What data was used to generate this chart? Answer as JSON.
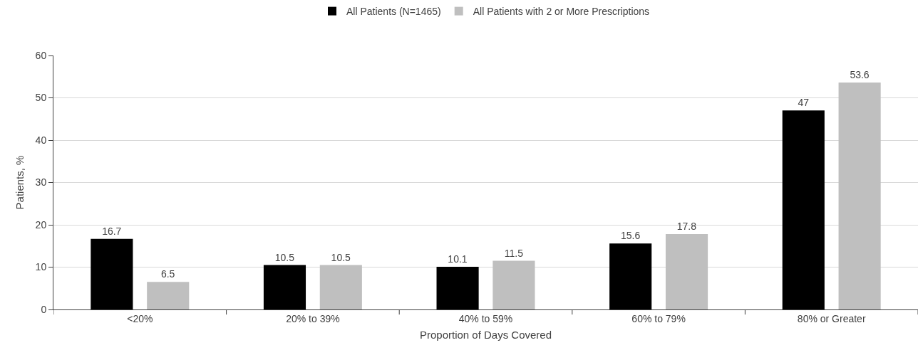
{
  "chart_data": {
    "type": "bar",
    "xlabel": "Proportion of Days Covered",
    "ylabel": "Patients, %",
    "categories": [
      "<20%",
      "20% to 39%",
      "40% to 59%",
      "60% to 79%",
      "80% or Greater"
    ],
    "series": [
      {
        "name": "All Patients (N=1465)",
        "color": "#000000",
        "values": [
          16.7,
          10.5,
          10.1,
          15.6,
          47
        ]
      },
      {
        "name": "All Patients with 2 or More Prescriptions",
        "color": "#bfbfbf",
        "values": [
          6.5,
          10.5,
          11.5,
          17.8,
          53.6
        ]
      }
    ],
    "ylim": [
      0,
      60
    ],
    "yticks": [
      0,
      10,
      20,
      30,
      40,
      50,
      60
    ],
    "grid": "y",
    "legend": "top",
    "data_labels": true
  }
}
